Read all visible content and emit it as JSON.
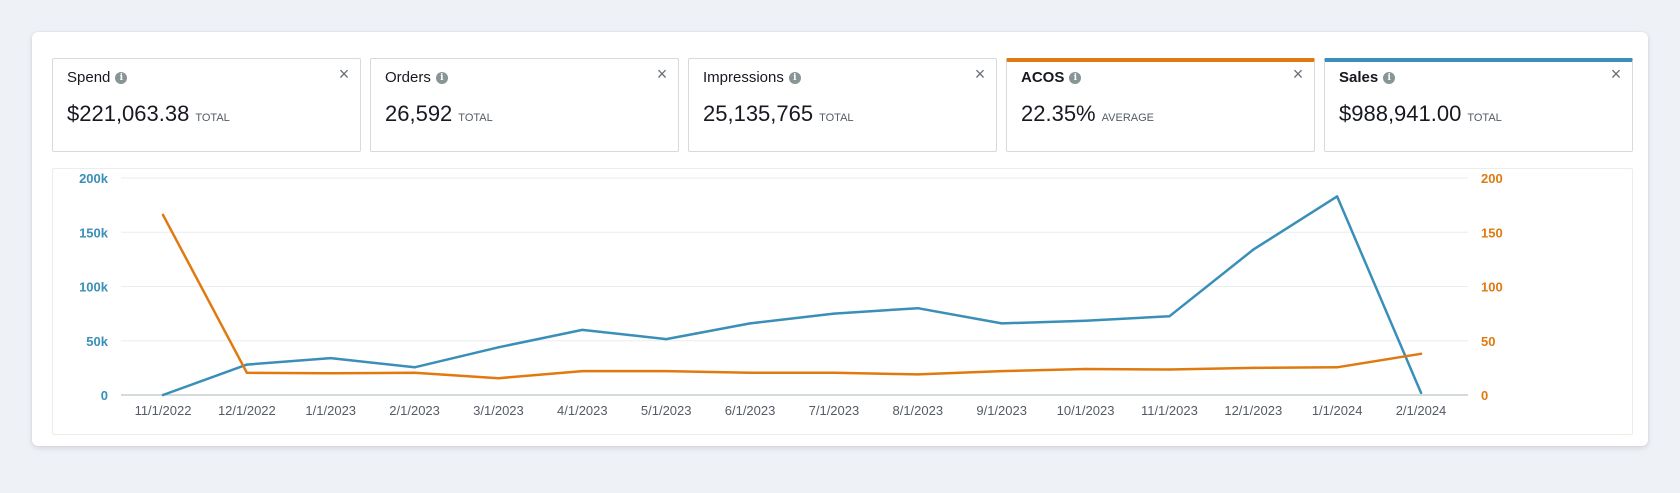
{
  "metrics": [
    {
      "name": "Spend",
      "value": "$221,063.38",
      "suffix": "TOTAL",
      "accent": null
    },
    {
      "name": "Orders",
      "value": "26,592",
      "suffix": "TOTAL",
      "accent": null
    },
    {
      "name": "Impressions",
      "value": "25,135,765",
      "suffix": "TOTAL",
      "accent": null
    },
    {
      "name": "ACOS",
      "value": "22.35%",
      "suffix": "AVERAGE",
      "accent": "#e07a10"
    },
    {
      "name": "Sales",
      "value": "$988,941.00",
      "suffix": "TOTAL",
      "accent": "#3a8fb8"
    }
  ],
  "info_icon_glyph": "i",
  "close_icon_glyph": "×",
  "chart_data": {
    "type": "line",
    "x": [
      "11/1/2022",
      "12/1/2022",
      "1/1/2023",
      "2/1/2023",
      "3/1/2023",
      "4/1/2023",
      "5/1/2023",
      "6/1/2023",
      "7/1/2023",
      "8/1/2023",
      "9/1/2023",
      "10/1/2023",
      "11/1/2023",
      "12/1/2023",
      "1/1/2024",
      "2/1/2024"
    ],
    "series": [
      {
        "name": "Sales",
        "axis": "left",
        "color": "#3a8fb8",
        "values": [
          0,
          28000,
          34000,
          25500,
          44000,
          60000,
          51500,
          66000,
          75000,
          80000,
          66000,
          68500,
          72500,
          134000,
          183000,
          2000
        ]
      },
      {
        "name": "ACOS",
        "axis": "right",
        "color": "#e07a10",
        "values": [
          166,
          20.5,
          20,
          20.5,
          15.5,
          22,
          22,
          20.5,
          20.5,
          19,
          22,
          24,
          23.5,
          25,
          25.5,
          38
        ]
      }
    ],
    "y_left": {
      "ticks": [
        0,
        50000,
        100000,
        150000,
        200000
      ],
      "tick_labels": [
        "0",
        "50k",
        "100k",
        "150k",
        "200k"
      ],
      "range": [
        0,
        200000
      ],
      "color": "#3a8fb8"
    },
    "y_right": {
      "ticks": [
        0,
        50,
        100,
        150,
        200
      ],
      "tick_labels": [
        "0",
        "50",
        "100",
        "150",
        "200"
      ],
      "range": [
        0,
        200
      ],
      "color": "#e07a10"
    },
    "grid": true
  }
}
